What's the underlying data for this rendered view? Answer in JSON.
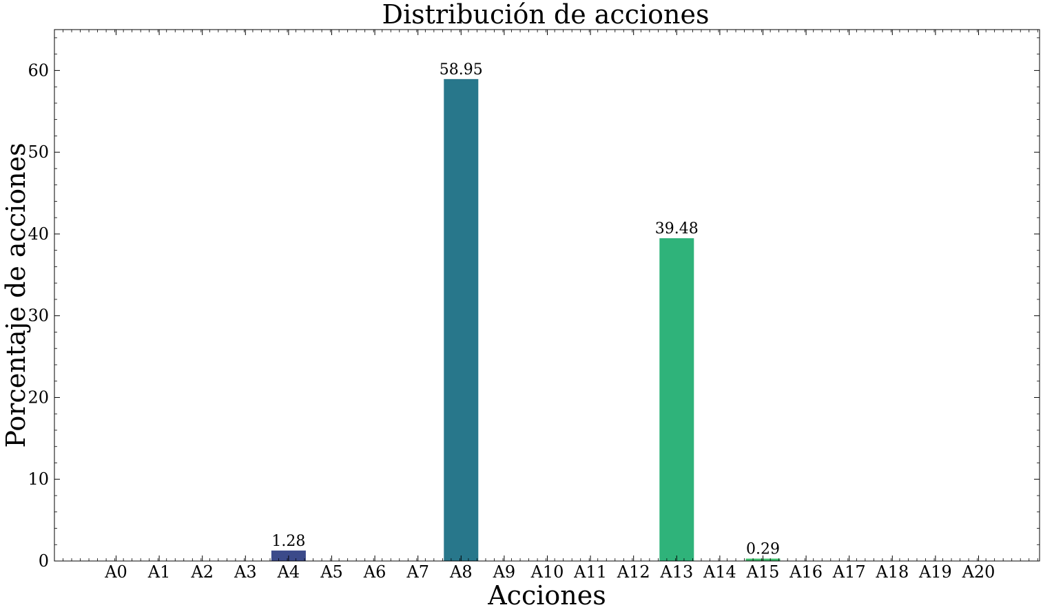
{
  "chart_data": {
    "type": "bar",
    "title": "Distribución de acciones",
    "xlabel": "Acciones",
    "ylabel": "Porcentaje de acciones",
    "categories": [
      "A0",
      "A1",
      "A2",
      "A3",
      "A4",
      "A5",
      "A6",
      "A7",
      "A8",
      "A9",
      "A10",
      "A11",
      "A12",
      "A13",
      "A14",
      "A15",
      "A16",
      "A17",
      "A18",
      "A19",
      "A20"
    ],
    "values": [
      0,
      0,
      0,
      0,
      1.28,
      0,
      0,
      0,
      58.95,
      0,
      0,
      0,
      0,
      39.48,
      0,
      0.29,
      0,
      0,
      0,
      0,
      0
    ],
    "data_labels": {
      "4": "1.28",
      "8": "58.95",
      "13": "39.48",
      "15": "0.29"
    },
    "bar_colors": {
      "4": "#3b4a8a",
      "8": "#28778b",
      "13": "#2fb37a",
      "15": "#3fbc6c"
    },
    "ylim": [
      0,
      65
    ],
    "yticks": [
      0,
      10,
      20,
      30,
      40,
      50,
      60
    ],
    "grid": false
  }
}
